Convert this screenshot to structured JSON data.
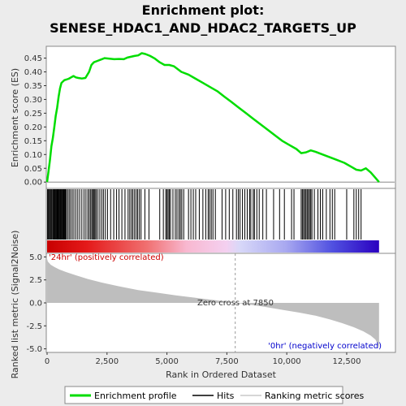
{
  "title_line1": "Enrichment plot:",
  "title_line2": "SENESE_HDAC1_AND_HDAC2_TARGETS_UP",
  "colors": {
    "es_line": "#00dd00",
    "hit": "#000000",
    "metric_fill": "#bebebe",
    "pos_label": "#cc0000",
    "neg_label": "#0000cc",
    "zero_line": "#999999"
  },
  "chart_data": [
    {
      "type": "line",
      "name": "enrichment-profile",
      "ylabel": "Enrichment score (ES)",
      "xlim": [
        0,
        14500
      ],
      "ylim": [
        -0.02,
        0.49
      ],
      "yticks": [
        "0.00",
        "0.05",
        "0.10",
        "0.15",
        "0.20",
        "0.25",
        "0.30",
        "0.35",
        "0.40",
        "0.45"
      ],
      "grid": false,
      "series": [
        {
          "name": "Enrichment profile",
          "x": [
            0,
            60,
            120,
            180,
            240,
            300,
            360,
            420,
            480,
            540,
            600,
            660,
            720,
            800,
            900,
            1000,
            1100,
            1200,
            1300,
            1450,
            1600,
            1750,
            1850,
            1950,
            2100,
            2250,
            2400,
            2600,
            2800,
            3000,
            3200,
            3350,
            3500,
            3650,
            3800,
            3950,
            4100,
            4300,
            4500,
            4700,
            4900,
            5100,
            5300,
            5600,
            5900,
            6200,
            6500,
            6800,
            7100,
            7400,
            7700,
            8000,
            8300,
            8600,
            8900,
            9200,
            9500,
            9800,
            10100,
            10400,
            10600,
            10800,
            11000,
            11200,
            11500,
            11800,
            12100,
            12400,
            12700,
            12900,
            13100,
            13300,
            13500,
            13700,
            13850
          ],
          "y": [
            0.0,
            0.04,
            0.08,
            0.13,
            0.16,
            0.2,
            0.24,
            0.27,
            0.31,
            0.34,
            0.36,
            0.365,
            0.37,
            0.372,
            0.375,
            0.38,
            0.385,
            0.38,
            0.378,
            0.376,
            0.378,
            0.4,
            0.425,
            0.435,
            0.44,
            0.445,
            0.45,
            0.448,
            0.446,
            0.447,
            0.446,
            0.452,
            0.455,
            0.458,
            0.46,
            0.468,
            0.465,
            0.458,
            0.448,
            0.435,
            0.425,
            0.425,
            0.42,
            0.4,
            0.39,
            0.375,
            0.36,
            0.345,
            0.33,
            0.31,
            0.29,
            0.27,
            0.25,
            0.23,
            0.21,
            0.19,
            0.17,
            0.15,
            0.135,
            0.12,
            0.105,
            0.108,
            0.115,
            0.11,
            0.1,
            0.09,
            0.08,
            0.07,
            0.055,
            0.045,
            0.042,
            0.05,
            0.035,
            0.015,
            0.0
          ]
        }
      ]
    },
    {
      "type": "hits",
      "name": "hits",
      "xlim": [
        0,
        14500
      ],
      "positions": [
        15,
        45,
        80,
        110,
        150,
        190,
        230,
        260,
        290,
        320,
        350,
        380,
        410,
        440,
        470,
        500,
        530,
        560,
        590,
        620,
        650,
        680,
        710,
        740,
        770,
        800,
        860,
        920,
        980,
        1050,
        1120,
        1200,
        1280,
        1360,
        1450,
        1540,
        1620,
        1700,
        1760,
        1820,
        1870,
        1920,
        1960,
        2000,
        2050,
        2120,
        2200,
        2280,
        2350,
        2430,
        2520,
        2650,
        2780,
        2900,
        3000,
        3120,
        3250,
        3380,
        3450,
        3520,
        3580,
        3650,
        3720,
        3780,
        3850,
        3920,
        4080,
        4250,
        4700,
        4850,
        4950,
        5000,
        5050,
        5100,
        5150,
        5250,
        5350,
        5420,
        5500,
        5560,
        5620,
        5700,
        5900,
        6000,
        6100,
        6200,
        6350,
        6500,
        6620,
        6720,
        6780,
        6850,
        6920,
        7020,
        7300,
        7450,
        7600,
        7750,
        7900,
        7980,
        8050,
        8150,
        8250,
        8350,
        8450,
        8500,
        8600,
        8650,
        8750,
        8850,
        9000,
        9150,
        9450,
        9700,
        9900,
        10200,
        10300,
        10600,
        10650,
        10700,
        10750,
        10800,
        10850,
        10900,
        10950,
        11000,
        11050,
        11150,
        11300,
        11400,
        11500,
        11650,
        11800,
        11900,
        12000,
        12500,
        12800,
        12900,
        13000,
        13100
      ]
    },
    {
      "type": "area",
      "name": "ranked-list-metric",
      "xlabel": "Rank in Ordered Dataset",
      "ylabel": "Ranked list metric (Signal2Noise)",
      "xlim": [
        0,
        14500
      ],
      "ylim": [
        -5.3,
        5.3
      ],
      "xticks": [
        "0",
        "2,500",
        "5,000",
        "7,500",
        "10,000",
        "12,500"
      ],
      "yticks": [
        "5.0",
        "2.5",
        "0.0",
        "-2.5",
        "-5.0"
      ],
      "series": [
        {
          "name": "Ranking metric scores",
          "x": [
            0,
            30,
            80,
            150,
            300,
            500,
            800,
            1200,
            1700,
            2300,
            3000,
            3800,
            4600,
            5400,
            6200,
            7000,
            7600,
            7850,
            8200,
            9000,
            9800,
            10500,
            11200,
            11800,
            12300,
            12800,
            13200,
            13500,
            13700,
            13800,
            13850
          ],
          "y": [
            4.8,
            4.5,
            4.35,
            4.15,
            3.9,
            3.65,
            3.35,
            3.0,
            2.6,
            2.2,
            1.8,
            1.4,
            1.1,
            0.8,
            0.55,
            0.3,
            0.1,
            0.0,
            -0.1,
            -0.4,
            -0.75,
            -1.05,
            -1.4,
            -1.8,
            -2.2,
            -2.65,
            -3.1,
            -3.55,
            -4.0,
            -4.5,
            -5.0
          ]
        }
      ],
      "annotations": {
        "zero_cross": "Zero cross at 7850",
        "zero_cross_rank": 7850,
        "positive_label": "'24hr' (positively correlated)",
        "negative_label": "'0hr' (negatively correlated)"
      }
    }
  ],
  "legend": {
    "placement": "bottom",
    "items": [
      "Enrichment profile",
      "Hits",
      "Ranking metric scores"
    ]
  }
}
